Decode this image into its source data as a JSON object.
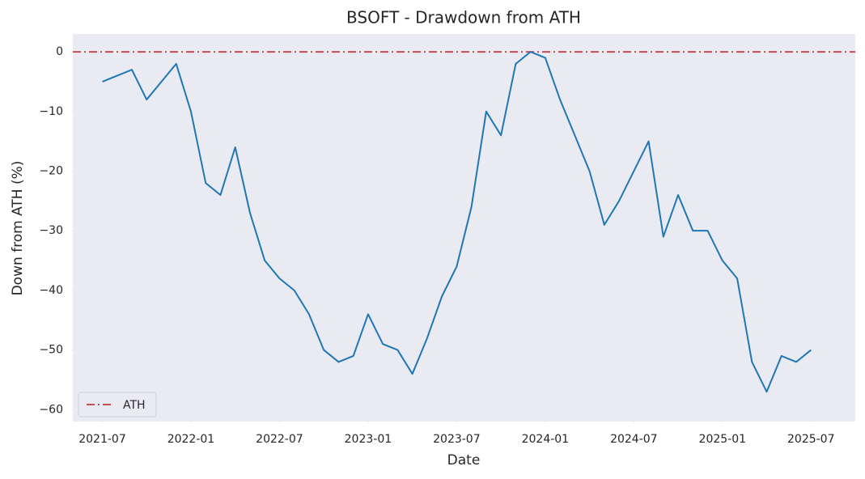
{
  "chart_data": {
    "type": "line",
    "title": "BSOFT - Drawdown from ATH",
    "x_label": "Date",
    "y_label": "Down from ATH (%)",
    "x": [
      "2021-07",
      "2021-08",
      "2021-09",
      "2021-10",
      "2021-11",
      "2021-12",
      "2022-01",
      "2022-02",
      "2022-03",
      "2022-04",
      "2022-05",
      "2022-06",
      "2022-07",
      "2022-08",
      "2022-09",
      "2022-10",
      "2022-11",
      "2022-12",
      "2023-01",
      "2023-02",
      "2023-03",
      "2023-04",
      "2023-05",
      "2023-06",
      "2023-07",
      "2023-08",
      "2023-09",
      "2023-10",
      "2023-11",
      "2023-12",
      "2024-01",
      "2024-02",
      "2024-03",
      "2024-04",
      "2024-05",
      "2024-06",
      "2024-07",
      "2024-08",
      "2024-09",
      "2024-10",
      "2024-11",
      "2024-12",
      "2025-01",
      "2025-02",
      "2025-03",
      "2025-04",
      "2025-05",
      "2025-06",
      "2025-07"
    ],
    "values": [
      -5,
      -4,
      -3,
      -8,
      -5,
      -2,
      -10,
      -22,
      -24,
      -16,
      -27,
      -35,
      -38,
      -40,
      -44,
      -50,
      -52,
      -51,
      -44,
      -49,
      -50,
      -54,
      -48,
      -41,
      -36,
      -26,
      -10,
      -14,
      -2,
      0,
      -1,
      -8,
      -14,
      -20,
      -29,
      -25,
      -20,
      -15,
      -31,
      -24,
      -30,
      -30,
      -35,
      -38,
      -52,
      -57,
      -51,
      -52,
      -50
    ],
    "color": "#1f77b4",
    "hlines": [
      {
        "name": "ATH",
        "y": 0,
        "color": "#c44e52"
      }
    ],
    "legend": "lower left",
    "grid": false,
    "xlim": [
      "2021-05",
      "2025-10"
    ],
    "xticks": [
      "2021-07",
      "2022-01",
      "2022-07",
      "2023-01",
      "2023-07",
      "2024-01",
      "2024-07",
      "2025-01",
      "2025-07"
    ],
    "ylim": [
      -62,
      3
    ],
    "yticks": [
      {
        "value": -60,
        "label": "−60"
      },
      {
        "value": -50,
        "label": "−50"
      },
      {
        "value": -40,
        "label": "−40"
      },
      {
        "value": -30,
        "label": "−30"
      },
      {
        "value": -20,
        "label": "−20"
      },
      {
        "value": -10,
        "label": "−10"
      },
      0
    ]
  }
}
